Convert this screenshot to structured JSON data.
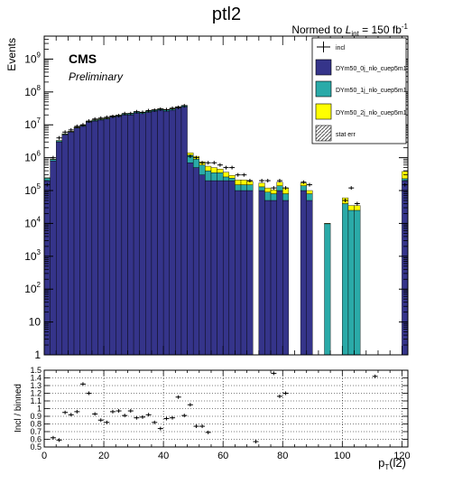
{
  "chart_data": [
    {
      "type": "bar",
      "title": "ptl2",
      "subtitle": "Normed to L_int = 150 fb^-1",
      "subtitle_parts": {
        "pre": "Normed to ",
        "L": "L",
        "int": "int",
        "eq": " = 150 fb",
        "exp": "-1"
      },
      "cms_label": "CMS",
      "preliminary_label": "Preliminary",
      "ylabel": "Events",
      "xlabel": "p_T(l2)",
      "xlabel_parts": {
        "p": "p",
        "T": "T",
        "rest": "(l2)"
      },
      "xlim": [
        0,
        122
      ],
      "ylim": [
        1,
        5000000000.0
      ],
      "yscale": "log",
      "stacked": true,
      "grid": false,
      "legend_position": "top-right",
      "y_tick_labels": [
        "1",
        "10",
        "10^2",
        "10^3",
        "10^4",
        "10^5",
        "10^6",
        "10^7",
        "10^8",
        "10^9"
      ],
      "colors": {
        "dy0j": "#35348a",
        "dy1j": "#2aaaa8",
        "dy2j": "#ffff00",
        "incl": "#000000"
      },
      "bin_width": 2,
      "x": [
        1,
        3,
        5,
        7,
        9,
        11,
        13,
        15,
        17,
        19,
        21,
        23,
        25,
        27,
        29,
        31,
        33,
        35,
        37,
        39,
        41,
        43,
        45,
        47,
        49,
        51,
        53,
        55,
        57,
        59,
        61,
        63,
        65,
        67,
        69,
        71,
        73,
        75,
        77,
        79,
        81,
        83,
        85,
        87,
        89,
        91,
        93,
        95,
        97,
        99,
        101,
        103,
        105,
        107,
        109,
        111,
        113,
        115,
        117,
        119,
        121
      ],
      "series": [
        {
          "name": "DYm50_0j_nlo_cuep5m1",
          "key": "dy0j",
          "values": [
            200000,
            800000,
            3000000,
            5000000,
            6000000,
            8000000,
            9000000,
            12000000,
            13000000,
            14000000,
            15000000,
            17000000,
            18000000,
            20000000,
            20000000,
            23000000,
            22000000,
            24000000,
            26000000,
            28000000,
            26000000,
            28000000,
            32000000,
            35000000,
            700000,
            500000,
            300000,
            200000,
            200000,
            200000,
            200000,
            200000,
            100000,
            100000,
            100000,
            0,
            100000,
            50000,
            50000,
            100000,
            50000,
            0,
            0,
            100000,
            50000,
            0,
            0,
            0,
            0,
            0,
            0,
            0,
            0,
            0,
            0,
            0,
            0,
            0,
            0,
            0,
            200000
          ]
        },
        {
          "name": "DYm50_1j_nlo_cuep5m1",
          "key": "dy1j",
          "values": [
            40000,
            100000,
            300000,
            300000,
            300000,
            400000,
            600000,
            800000,
            900000,
            1000000,
            1000000,
            1500000,
            1500000,
            1500000,
            2000000,
            2000000,
            2000000,
            2000000,
            2500000,
            2500000,
            2500000,
            2500000,
            3000000,
            3500000,
            500000,
            400000,
            300000,
            200000,
            150000,
            150000,
            60000,
            40000,
            50000,
            50000,
            50000,
            0,
            30000,
            40000,
            30000,
            40000,
            30000,
            0,
            0,
            40000,
            30000,
            0,
            0,
            10000,
            0,
            0,
            40000,
            25000,
            25000,
            0,
            0,
            0,
            0,
            0,
            0,
            0,
            30000
          ]
        },
        {
          "name": "DYm50_2j_nlo_cuep5m1",
          "key": "dy2j",
          "values": [
            5000,
            10000,
            40000,
            60000,
            60000,
            80000,
            100000,
            150000,
            200000,
            200000,
            200000,
            300000,
            300000,
            300000,
            400000,
            400000,
            400000,
            400000,
            500000,
            500000,
            500000,
            500000,
            600000,
            700000,
            200000,
            200000,
            150000,
            150000,
            150000,
            100000,
            100000,
            50000,
            60000,
            60000,
            40000,
            0,
            40000,
            30000,
            25000,
            40000,
            40000,
            0,
            0,
            30000,
            20000,
            0,
            0,
            2,
            0,
            0,
            20000,
            10000,
            10000,
            0,
            0,
            0,
            0,
            0,
            0,
            0,
            150000
          ]
        }
      ],
      "markers": {
        "name": "incl",
        "key": "incl",
        "values": [
          150000,
          1000000,
          4000000,
          6000000,
          7000000,
          9000000,
          10000000,
          13000000,
          15000000,
          16000000,
          17000000,
          18000000,
          19000000,
          22000000,
          22000000,
          25000000,
          24000000,
          27000000,
          28000000,
          30000000,
          29000000,
          32000000,
          34000000,
          38000000,
          1100000,
          1000000,
          700000,
          700000,
          700000,
          600000,
          500000,
          500000,
          300000,
          300000,
          200000,
          0,
          200000,
          200000,
          120000,
          200000,
          120000,
          0,
          0,
          180000,
          150000,
          0,
          0,
          0,
          0,
          0,
          50000,
          120000,
          40000,
          0,
          0,
          0,
          0,
          0,
          0,
          0,
          150000
        ]
      },
      "legend": [
        {
          "label": "incl",
          "key": "incl",
          "style": "marker"
        },
        {
          "label": "DYm50_0j_nlo_cuep5m1",
          "key": "dy0j",
          "style": "fill"
        },
        {
          "label": "DYm50_1j_nlo_cuep5m1",
          "key": "dy1j",
          "style": "fill"
        },
        {
          "label": "DYm50_2j_nlo_cuep5m1",
          "key": "dy2j",
          "style": "fill"
        },
        {
          "label": "stat err",
          "key": "staterr",
          "style": "hatch"
        }
      ]
    },
    {
      "type": "scatter",
      "ylabel": "Incl / binned",
      "xlabel": "p_T(l2)",
      "xlim": [
        0,
        122
      ],
      "ylim": [
        0.5,
        1.5
      ],
      "grid": true,
      "x_tick_labels": [
        "0",
        "20",
        "40",
        "60",
        "80",
        "100",
        "120"
      ],
      "y_tick_labels": [
        "0.5",
        "0.6",
        "0.7",
        "0.8",
        "0.9",
        "1",
        "1.1",
        "1.2",
        "1.3",
        "1.4",
        "1.5"
      ],
      "points": [
        {
          "x": 3,
          "y": 0.62
        },
        {
          "x": 5,
          "y": 0.59
        },
        {
          "x": 7,
          "y": 0.95
        },
        {
          "x": 9,
          "y": 0.92
        },
        {
          "x": 11,
          "y": 0.96
        },
        {
          "x": 13,
          "y": 1.32
        },
        {
          "x": 15,
          "y": 1.2
        },
        {
          "x": 17,
          "y": 0.93
        },
        {
          "x": 19,
          "y": 0.85
        },
        {
          "x": 21,
          "y": 0.82
        },
        {
          "x": 23,
          "y": 0.96
        },
        {
          "x": 25,
          "y": 0.97
        },
        {
          "x": 27,
          "y": 0.91
        },
        {
          "x": 29,
          "y": 0.97
        },
        {
          "x": 31,
          "y": 0.88
        },
        {
          "x": 33,
          "y": 0.89
        },
        {
          "x": 35,
          "y": 0.92
        },
        {
          "x": 37,
          "y": 0.82
        },
        {
          "x": 39,
          "y": 0.74
        },
        {
          "x": 41,
          "y": 0.87
        },
        {
          "x": 43,
          "y": 0.88
        },
        {
          "x": 45,
          "y": 1.15
        },
        {
          "x": 47,
          "y": 0.91
        },
        {
          "x": 49,
          "y": 1.05
        },
        {
          "x": 51,
          "y": 0.77
        },
        {
          "x": 53,
          "y": 0.77
        },
        {
          "x": 55,
          "y": 0.69
        },
        {
          "x": 71,
          "y": 0.57
        },
        {
          "x": 77,
          "y": 1.46
        },
        {
          "x": 79,
          "y": 1.16
        },
        {
          "x": 81,
          "y": 1.2
        },
        {
          "x": 111,
          "y": 1.42
        }
      ]
    }
  ]
}
